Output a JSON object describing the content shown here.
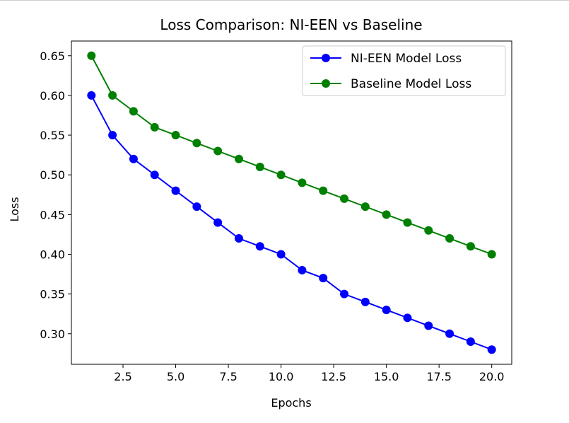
{
  "chart_data": {
    "type": "line",
    "title": "Loss Comparison: NI-EEN vs Baseline",
    "xlabel": "Epochs",
    "ylabel": "Loss",
    "x": [
      1,
      2,
      3,
      4,
      5,
      6,
      7,
      8,
      9,
      10,
      11,
      12,
      13,
      14,
      15,
      16,
      17,
      18,
      19,
      20
    ],
    "xlim": [
      0.05,
      20.95
    ],
    "ylim": [
      0.2615,
      0.6685
    ],
    "xticks": [
      2.5,
      5.0,
      7.5,
      10.0,
      12.5,
      15.0,
      17.5,
      20.0
    ],
    "xtick_labels": [
      "2.5",
      "5.0",
      "7.5",
      "10.0",
      "12.5",
      "15.0",
      "17.5",
      "20.0"
    ],
    "yticks": [
      0.3,
      0.35,
      0.4,
      0.45,
      0.5,
      0.55,
      0.6,
      0.65
    ],
    "ytick_labels": [
      "0.30",
      "0.35",
      "0.40",
      "0.45",
      "0.50",
      "0.55",
      "0.60",
      "0.65"
    ],
    "grid": false,
    "legend_position": "top-right",
    "series": [
      {
        "name": "NI-EEN Model Loss",
        "color": "#0000ff",
        "marker": "circle",
        "values": [
          0.6,
          0.55,
          0.52,
          0.5,
          0.48,
          0.46,
          0.44,
          0.42,
          0.41,
          0.4,
          0.38,
          0.37,
          0.35,
          0.34,
          0.33,
          0.32,
          0.31,
          0.3,
          0.29,
          0.28
        ]
      },
      {
        "name": "Baseline Model Loss",
        "color": "#008000",
        "marker": "circle",
        "values": [
          0.65,
          0.6,
          0.58,
          0.56,
          0.55,
          0.54,
          0.53,
          0.52,
          0.51,
          0.5,
          0.49,
          0.48,
          0.47,
          0.46,
          0.45,
          0.44,
          0.43,
          0.42,
          0.41,
          0.4
        ]
      }
    ]
  }
}
